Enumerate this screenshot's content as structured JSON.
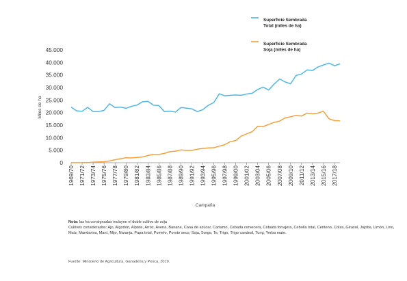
{
  "chart_data": {
    "type": "line",
    "xlabel": "Campaña",
    "ylabel": "Miles de ha",
    "ylim": [
      0,
      45000
    ],
    "y_ticks": [
      "0",
      "5.000",
      "10.000",
      "15.000",
      "20.000",
      "25.000",
      "30.000",
      "35.000",
      "40.000",
      "45.000"
    ],
    "grid": false,
    "legend_position": "top-right",
    "x": [
      "1969/70",
      "1970/71",
      "1971/72",
      "1972/73",
      "1973/74",
      "1974/75",
      "1975/76",
      "1976/77",
      "1977/78",
      "1978/79",
      "1979/80",
      "1980/81",
      "1981/82",
      "1982/83",
      "1983/84",
      "1984/85",
      "1985/86",
      "1986/87",
      "1987/88",
      "1988/89",
      "1989/90",
      "1990/91",
      "1991/92",
      "1992/93",
      "1993/94",
      "1994/95",
      "1995/96",
      "1996/97",
      "1997/98",
      "1998/99",
      "1999/00",
      "2000/01",
      "2001/02",
      "2002/03",
      "2003/04",
      "2004/05",
      "2005/06",
      "2006/07",
      "2007/08",
      "2008/09",
      "2009/10",
      "2010/11",
      "2011/12",
      "2012/13",
      "2013/14",
      "2014/15",
      "2015/16",
      "2016/17",
      "2017/18",
      "2018/19"
    ],
    "x_tick_labels": [
      "1969/70",
      "1971/72",
      "1973/74",
      "1975/76",
      "1977/78",
      "1979/80",
      "1981/82",
      "1983/84",
      "1985/86",
      "1987/88",
      "1989/90",
      "1991/92",
      "1993/94",
      "1995/96",
      "1997/98",
      "1999/00",
      "2001/02",
      "2003/04",
      "2005/06",
      "2007/08",
      "2009/10",
      "2011/12",
      "2013/14",
      "2015/16",
      "2017/18"
    ],
    "series": [
      {
        "name": "Superficie Sembrada Total (miles de ha)",
        "color": "#4db8e8",
        "values": [
          22200,
          20700,
          20500,
          22100,
          20400,
          20400,
          20900,
          23500,
          22000,
          22200,
          21700,
          22500,
          23000,
          24300,
          24500,
          23000,
          22800,
          20400,
          20600,
          20200,
          22000,
          21800,
          21500,
          20400,
          21200,
          22900,
          24000,
          27500,
          26700,
          26900,
          27000,
          26900,
          27400,
          27700,
          29200,
          30200,
          29000,
          31400,
          33400,
          32200,
          31500,
          34800,
          35400,
          37000,
          36800,
          38200,
          39000,
          39700,
          38700,
          39400
        ]
      },
      {
        "name": "Superficie Sembrada Soja (miles de ha)",
        "color": "#f5a03c",
        "values": [
          30,
          40,
          40,
          80,
          200,
          300,
          400,
          700,
          1200,
          1600,
          2000,
          1900,
          2100,
          2300,
          2900,
          3300,
          3300,
          3700,
          4400,
          4600,
          5100,
          4900,
          4900,
          5400,
          5700,
          5900,
          6000,
          6600,
          7200,
          8400,
          8800,
          10600,
          11500,
          12400,
          14500,
          14400,
          15300,
          16100,
          16600,
          17900,
          18300,
          18900,
          18600,
          19800,
          19500,
          19800,
          20500,
          17500,
          16800,
          16700
        ]
      }
    ]
  },
  "notes": {
    "line1_bold": "Nota:",
    "line1_rest": " las ha consignadas incluyen el doble cultivo de soja",
    "crops": "Cultivos considerados: Ajo, Algodón, Alpiste, Arróz, Avena, Banana, Cana de azúcar, Cartamo, Cebada cervecera, Cebada forrajera, Cebolla total, Centeno, Colza, Girasol, Jojoba, Limón, Lino, Maíz, Mandarina, Maní, Mijo, Naranja, Papa total, Pomelo, Poroto seco, Soja, Sorgo, Te, Trigo, Trigo candeal, Tung, Yerba mate.",
    "source": "Fuente: Ministerio de Agricultura, Ganadería y Pesca, 2019."
  }
}
